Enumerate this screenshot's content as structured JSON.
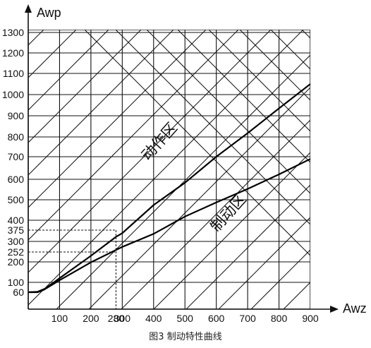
{
  "chart_data": {
    "type": "line",
    "title": "",
    "caption": "图3 制动特性曲线",
    "xlabel": "Awz",
    "ylabel": "Awp",
    "x_ticks": [
      "100",
      "200",
      "280",
      "300",
      "400",
      "500",
      "600",
      "700",
      "800",
      "900"
    ],
    "x_tick_values": [
      100,
      200,
      280,
      300,
      400,
      500,
      600,
      700,
      800,
      900
    ],
    "y_ticks": [
      "60",
      "100",
      "200",
      "252",
      "300",
      "375",
      "400",
      "500",
      "600",
      "700",
      "800",
      "900",
      "1000",
      "1100",
      "1200",
      "1300"
    ],
    "y_tick_values": [
      60,
      100,
      200,
      252,
      300,
      375,
      400,
      500,
      600,
      700,
      800,
      900,
      1000,
      1100,
      1200,
      1300
    ],
    "xlim": [
      0,
      900
    ],
    "grid": true,
    "series": [
      {
        "name": "",
        "values": [
          [
            0,
            60
          ],
          [
            30,
            62
          ],
          [
            55,
            75
          ],
          [
            100,
            120
          ],
          [
            200,
            232
          ],
          [
            280,
            330
          ],
          [
            300,
            355
          ],
          [
            400,
            474
          ],
          [
            500,
            583
          ],
          [
            600,
            700
          ],
          [
            700,
            818
          ],
          [
            800,
            935
          ],
          [
            900,
            1050
          ]
        ]
      },
      {
        "name": "",
        "values": [
          [
            0,
            60
          ],
          [
            30,
            60
          ],
          [
            50,
            70
          ],
          [
            100,
            110
          ],
          [
            200,
            198
          ],
          [
            300,
            275
          ],
          [
            400,
            350
          ],
          [
            500,
            418
          ],
          [
            600,
            487
          ],
          [
            700,
            553
          ],
          [
            800,
            622
          ],
          [
            900,
            690
          ]
        ]
      }
    ],
    "reference_points": [
      [
        280,
        375
      ],
      [
        280,
        252
      ]
    ],
    "regions": [
      {
        "label": "动作区",
        "x": 430,
        "y": 760
      },
      {
        "label": "制动区",
        "x": 650,
        "y": 420
      }
    ]
  }
}
